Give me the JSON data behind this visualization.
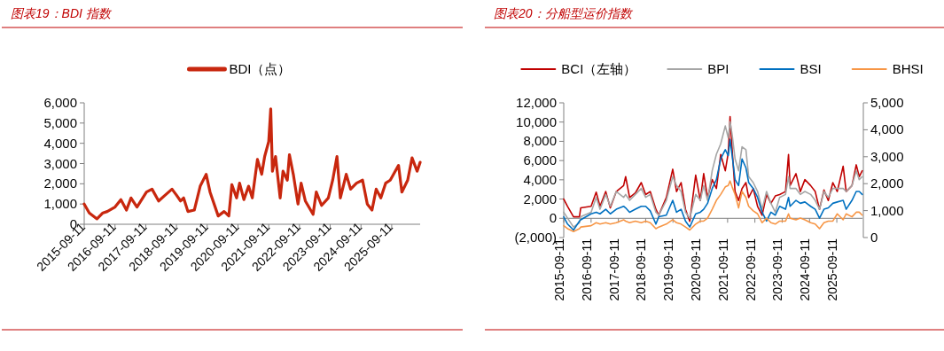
{
  "chart_data": [
    {
      "type": "line",
      "title": "图表19：BDI 指数",
      "legend": "top",
      "xlim": [
        "2015-09-11",
        "2026-08-15"
      ],
      "xticks": [
        "2015-09-11",
        "2016-09-11",
        "2017-09-11",
        "2018-09-11",
        "2019-09-11",
        "2020-09-11",
        "2021-09-11",
        "2022-09-11",
        "2023-09-11",
        "2024-09-11",
        "2025-09-11"
      ],
      "ylim": [
        0,
        6000
      ],
      "yticks": [
        {
          "value": 0,
          "label": "0"
        },
        {
          "value": 1000,
          "label": "1,000"
        },
        {
          "value": 2000,
          "label": "2,000"
        },
        {
          "value": 3000,
          "label": "3,000"
        },
        {
          "value": 4000,
          "label": "4,000"
        },
        {
          "value": 5000,
          "label": "5,000"
        },
        {
          "value": 6000,
          "label": "6,000"
        }
      ],
      "x": [
        "2015-09-11",
        "2015-11-10",
        "2016-02-10",
        "2016-04-20",
        "2016-06-11",
        "2016-09-11",
        "2016-11-20",
        "2017-01-25",
        "2017-03-20",
        "2017-05-30",
        "2017-09-20",
        "2017-11-25",
        "2018-02-11",
        "2018-04-30",
        "2018-07-20",
        "2018-09-11",
        "2018-10-30",
        "2018-12-05",
        "2019-01-25",
        "2019-04-11",
        "2019-06-20",
        "2019-08-30",
        "2019-10-15",
        "2020-01-20",
        "2020-03-30",
        "2020-05-25",
        "2020-06-30",
        "2020-08-25",
        "2020-09-30",
        "2020-11-20",
        "2021-01-15",
        "2021-02-28",
        "2021-04-30",
        "2021-06-20",
        "2021-07-25",
        "2021-09-11",
        "2021-10-05",
        "2021-10-25",
        "2021-12-01",
        "2022-01-25",
        "2022-02-28",
        "2022-04-20",
        "2022-05-15",
        "2022-06-30",
        "2022-08-25",
        "2022-10-01",
        "2022-11-20",
        "2023-02-20",
        "2023-03-30",
        "2023-06-01",
        "2023-08-20",
        "2023-10-11",
        "2023-12-01",
        "2024-01-10",
        "2024-03-20",
        "2024-05-11",
        "2024-07-20",
        "2024-09-30",
        "2024-11-25",
        "2025-01-20",
        "2025-03-11",
        "2025-05-05",
        "2025-07-01",
        "2025-08-25",
        "2025-12-01",
        "2026-01-10",
        "2026-03-20",
        "2026-05-11",
        "2026-07-10",
        "2026-08-15"
      ],
      "series": [
        {
          "name": "BDI（点）",
          "color": "#c8270e",
          "values": [
            1000,
            560,
            265,
            560,
            630,
            850,
            1220,
            700,
            1300,
            850,
            1590,
            1735,
            1150,
            1440,
            1735,
            1440,
            1150,
            1300,
            630,
            700,
            1880,
            2470,
            1590,
            410,
            630,
            410,
            1960,
            1300,
            2030,
            1220,
            1880,
            1300,
            3200,
            2470,
            3350,
            4090,
            5700,
            2620,
            3350,
            1300,
            2620,
            2180,
            3430,
            2470,
            1000,
            2030,
            1150,
            490,
            1590,
            930,
            1300,
            2180,
            3350,
            1300,
            2470,
            1735,
            2030,
            2180,
            1000,
            700,
            1735,
            1300,
            2030,
            2180,
            2910,
            1590,
            2180,
            3280,
            2620,
            3060
          ]
        }
      ]
    },
    {
      "type": "line",
      "title": "图表20：分船型运价指数",
      "legend": "top",
      "xlim": [
        "2015-09-11",
        "2026-08-20"
      ],
      "xticks": [
        "2015-09-11",
        "2016-09-11",
        "2017-09-11",
        "2018-09-11",
        "2019-09-11",
        "2020-09-11",
        "2021-09-11",
        "2022-09-11",
        "2023-09-11",
        "2024-09-11",
        "2025-09-11"
      ],
      "ylim": [
        -2000,
        12000
      ],
      "yticks": [
        {
          "value": -2000,
          "label": "(2,000)"
        },
        {
          "value": 0,
          "label": "0"
        },
        {
          "value": 2000,
          "label": "2,000"
        },
        {
          "value": 4000,
          "label": "4,000"
        },
        {
          "value": 6000,
          "label": "6,000"
        },
        {
          "value": 8000,
          "label": "8,000"
        },
        {
          "value": 10000,
          "label": "10,000"
        },
        {
          "value": 12000,
          "label": "12,000"
        }
      ],
      "y2lim": [
        0,
        5000
      ],
      "y2ticks": [
        {
          "value": 0,
          "label": "0"
        },
        {
          "value": 1000,
          "label": "1,000"
        },
        {
          "value": 2000,
          "label": "2,000"
        },
        {
          "value": 3000,
          "label": "3,000"
        },
        {
          "value": 4000,
          "label": "4,000"
        },
        {
          "value": 5000,
          "label": "5,000"
        }
      ],
      "x": [
        "2015-09-11",
        "2015-11-01",
        "2016-01-20",
        "2016-04-08",
        "2016-04-25",
        "2016-09-11",
        "2016-11-18",
        "2017-01-08",
        "2017-03-26",
        "2017-05-26",
        "2017-08-14",
        "2017-11-20",
        "2017-12-17",
        "2018-02-08",
        "2018-04-26",
        "2018-07-14",
        "2018-09-11",
        "2018-11-11",
        "2019-01-26",
        "2019-03-05",
        "2019-06-14",
        "2019-09-08",
        "2019-10-29",
        "2019-12-29",
        "2020-02-26",
        "2020-04-23",
        "2020-07-11",
        "2020-09-11",
        "2020-10-26",
        "2020-12-17",
        "2021-02-17",
        "2021-04-14",
        "2021-06-11",
        "2021-08-11",
        "2021-09-20",
        "2021-10-14",
        "2021-11-11",
        "2021-12-20",
        "2022-02-05",
        "2022-03-23",
        "2022-05-14",
        "2022-06-20",
        "2022-08-20",
        "2022-10-17",
        "2022-12-17",
        "2023-02-14",
        "2023-04-14",
        "2023-06-11",
        "2023-08-08",
        "2023-10-26",
        "2023-12-05",
        "2023-12-26",
        "2024-03-14",
        "2024-05-11",
        "2024-07-11",
        "2024-09-26",
        "2024-11-26",
        "2025-01-23",
        "2025-03-23",
        "2025-05-20",
        "2025-07-20",
        "2025-09-17",
        "2025-12-05",
        "2026-01-14",
        "2026-04-02",
        "2026-05-29",
        "2026-07-08",
        "2026-08-17"
      ],
      "series": [
        {
          "name": "BCI（左轴）",
          "color": "#c00000",
          "values": [
            2000,
            1240,
            150,
            150,
            1080,
            1240,
            2720,
            1240,
            2780,
            1080,
            2780,
            3400,
            4330,
            2160,
            2630,
            3710,
            2470,
            2780,
            930,
            310,
            2160,
            5100,
            2780,
            3710,
            930,
            -310,
            4480,
            1850,
            4640,
            2160,
            4020,
            3090,
            6640,
            4940,
            6800,
            10570,
            7110,
            2780,
            1850,
            3090,
            3710,
            2160,
            3090,
            1240,
            310,
            2470,
            1550,
            2320,
            2470,
            2780,
            6640,
            3400,
            4640,
            2780,
            4020,
            3400,
            2780,
            930,
            2940,
            1850,
            3710,
            2780,
            5410,
            2780,
            3400,
            5560,
            4330,
            4940
          ]
        },
        {
          "name": "BPI",
          "color": "#a6a6a6",
          "axis": "y2",
          "values": [
            940,
            720,
            390,
            550,
            770,
            940,
            1490,
            1050,
            1600,
            1160,
            1710,
            1490,
            1600,
            1380,
            1600,
            1820,
            1490,
            1600,
            940,
            830,
            1380,
            2260,
            1930,
            1710,
            940,
            720,
            1600,
            1380,
            1930,
            1380,
            2480,
            3090,
            3480,
            4140,
            3700,
            4300,
            3810,
            2920,
            2480,
            3370,
            3260,
            2260,
            2040,
            1710,
            1050,
            1710,
            1270,
            940,
            1490,
            1600,
            2260,
            1820,
            1820,
            1600,
            1710,
            1600,
            1380,
            1050,
            1710,
            1490,
            1820,
            1820,
            1820,
            1710,
            1930,
            2480,
            2150,
            2260
          ]
        },
        {
          "name": "BSI",
          "color": "#0070c0",
          "axis": "y2",
          "values": [
            770,
            500,
            280,
            610,
            660,
            880,
            940,
            880,
            1050,
            880,
            1050,
            1160,
            1100,
            940,
            1050,
            1160,
            1160,
            990,
            500,
            770,
            830,
            1380,
            940,
            1050,
            610,
            390,
            880,
            940,
            1050,
            1270,
            1820,
            2150,
            2920,
            3260,
            3040,
            3640,
            3040,
            2150,
            1930,
            2920,
            2590,
            2040,
            1820,
            1490,
            940,
            610,
            940,
            830,
            1160,
            1050,
            1490,
            1160,
            1380,
            1270,
            1320,
            1160,
            1050,
            720,
            1050,
            1100,
            1270,
            1320,
            1380,
            1050,
            1380,
            1710,
            1710,
            1600
          ]
        },
        {
          "name": "BHSI",
          "color": "#f79646",
          "axis": "y2",
          "values": [
            440,
            330,
            220,
            330,
            390,
            440,
            550,
            500,
            550,
            500,
            550,
            660,
            610,
            550,
            610,
            550,
            610,
            550,
            330,
            390,
            500,
            660,
            550,
            500,
            390,
            280,
            500,
            610,
            610,
            720,
            1050,
            1380,
            1600,
            1880,
            1930,
            2100,
            1880,
            1600,
            1100,
            1710,
            1490,
            1160,
            990,
            880,
            550,
            720,
            550,
            500,
            610,
            610,
            880,
            720,
            660,
            720,
            660,
            550,
            500,
            330,
            550,
            610,
            610,
            880,
            660,
            880,
            770,
            940,
            940,
            830
          ]
        }
      ]
    }
  ]
}
